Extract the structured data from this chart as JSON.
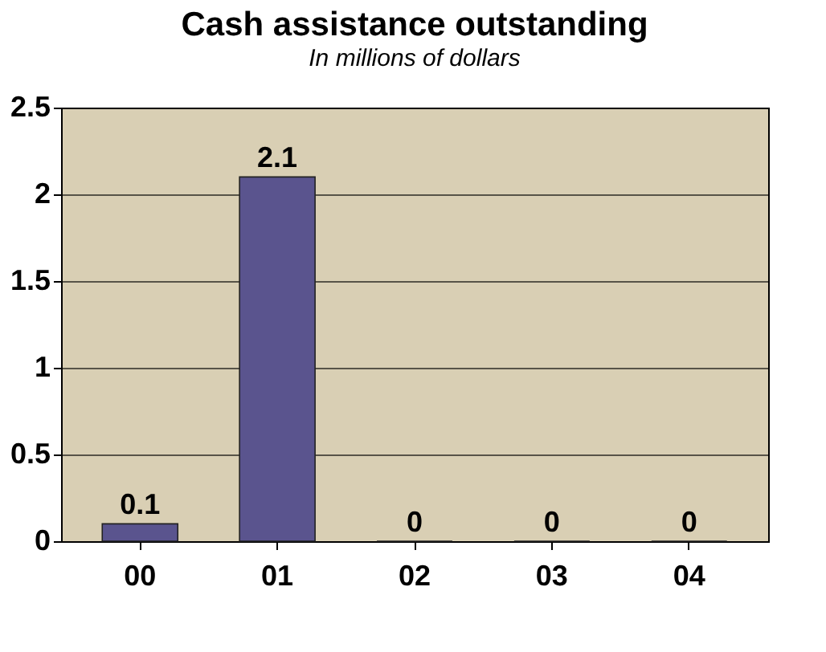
{
  "chart_data": {
    "type": "bar",
    "title": "Cash assistance outstanding",
    "subtitle": "In millions of dollars",
    "categories": [
      "00",
      "01",
      "02",
      "03",
      "04"
    ],
    "values": [
      0.1,
      2.1,
      0,
      0,
      0
    ],
    "color": "#5a548e",
    "ylim": [
      0,
      2.5
    ],
    "yticks": [
      0,
      0.5,
      1,
      1.5,
      2,
      2.5
    ],
    "grid": "y",
    "data_labels": true
  }
}
